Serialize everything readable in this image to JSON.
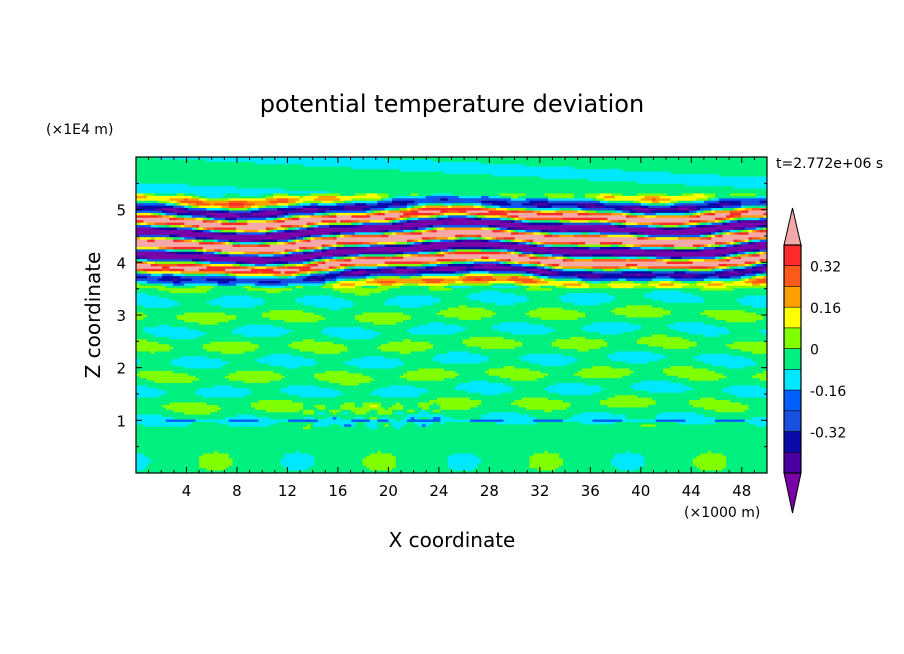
{
  "chart_data": {
    "type": "heatmap",
    "title": "potential temperature deviation",
    "xlabel": "X coordinate",
    "ylabel": "Z coordinate",
    "x_units": "(×1000 m)",
    "y_units": "(×1E4 m)",
    "time_label": "t=2.772e+06 s",
    "xlim": [
      0,
      50
    ],
    "ylim": [
      0,
      6
    ],
    "x_ticks": [
      4,
      8,
      12,
      16,
      20,
      24,
      28,
      32,
      36,
      40,
      44,
      48
    ],
    "y_ticks": [
      1,
      2,
      3,
      4,
      5
    ],
    "colorbar": {
      "levels": [
        -0.48,
        -0.4,
        -0.32,
        -0.24,
        -0.16,
        -0.08,
        0,
        0.08,
        0.16,
        0.24,
        0.32,
        0.4,
        0.48
      ],
      "colors": [
        "#7a00a8",
        "#4a00a0",
        "#0a0aa8",
        "#1a50e0",
        "#0060ff",
        "#00e8ff",
        "#00f080",
        "#80ff00",
        "#ffff00",
        "#ffa000",
        "#ff5a1a",
        "#ff2a2a",
        "#f4a8a8"
      ],
      "tick_labels": [
        "0.32",
        "0.16",
        "0",
        "-0.16",
        "-0.32"
      ],
      "tick_values": [
        0.32,
        0.16,
        0,
        -0.16,
        -0.32
      ]
    },
    "regions": [
      {
        "z_range": [
          0,
          3.5
        ],
        "description": "weak deviations near 0 (-0.08 to 0.08)"
      },
      {
        "z_range": [
          3.5,
          5.3
        ],
        "description": "strong alternating layers, values from below -0.48 to above 0.48"
      },
      {
        "z_range": [
          5.3,
          6
        ],
        "description": "near-zero deviations"
      }
    ]
  }
}
